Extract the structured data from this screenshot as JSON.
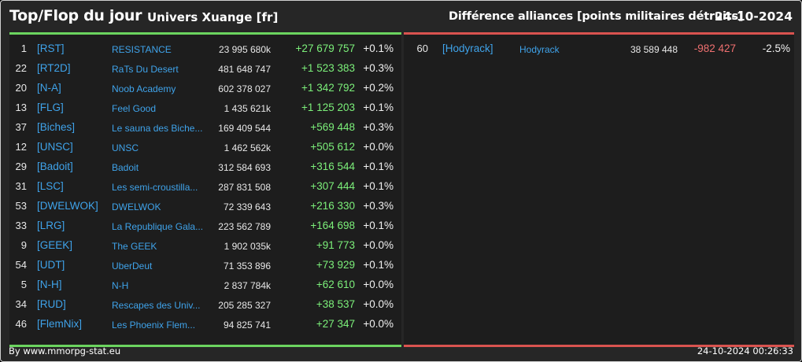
{
  "header": {
    "title": "Top/Flop du jour",
    "universe": "Univers Xuange [fr]",
    "subtitle": "Différence alliances [points militaires détruits]",
    "date": "24-10-2024"
  },
  "top": [
    {
      "rank": "1",
      "tag": "[RST]",
      "name": "RESISTANCE",
      "points": "23 995 680k",
      "diff": "+27 679 757",
      "pct": "+0.1%"
    },
    {
      "rank": "22",
      "tag": "[RT2D]",
      "name": "RaTs Du Desert",
      "points": "481 648 747",
      "diff": "+1 523 383",
      "pct": "+0.3%"
    },
    {
      "rank": "20",
      "tag": "[N-A]",
      "name": "Noob Academy",
      "points": "602 378 027",
      "diff": "+1 342 792",
      "pct": "+0.2%"
    },
    {
      "rank": "13",
      "tag": "[FLG]",
      "name": "Feel Good",
      "points": "1 435 621k",
      "diff": "+1 125 203",
      "pct": "+0.1%"
    },
    {
      "rank": "37",
      "tag": "[Biches]",
      "name": "Le sauna des Biche...",
      "points": "169 409 544",
      "diff": "+569 448",
      "pct": "+0.3%"
    },
    {
      "rank": "12",
      "tag": "[UNSC]",
      "name": "UNSC",
      "points": "1 462 562k",
      "diff": "+505 612",
      "pct": "+0.0%"
    },
    {
      "rank": "29",
      "tag": "[Badoit]",
      "name": "Badoit",
      "points": "312 584 693",
      "diff": "+316 544",
      "pct": "+0.1%"
    },
    {
      "rank": "31",
      "tag": "[LSC]",
      "name": "Les semi-croustilla...",
      "points": "287 831 508",
      "diff": "+307 444",
      "pct": "+0.1%"
    },
    {
      "rank": "53",
      "tag": "[DWELWOK]",
      "name": "DWELWOK",
      "points": "72 339 643",
      "diff": "+216 330",
      "pct": "+0.3%"
    },
    {
      "rank": "33",
      "tag": "[LRG]",
      "name": "La Republique Gala...",
      "points": "223 562 789",
      "diff": "+164 698",
      "pct": "+0.1%"
    },
    {
      "rank": "9",
      "tag": "[GEEK]",
      "name": "The GEEK",
      "points": "1 902 035k",
      "diff": "+91 773",
      "pct": "+0.0%"
    },
    {
      "rank": "54",
      "tag": "[UDT]",
      "name": "UberDeut",
      "points": "71 353 896",
      "diff": "+73 929",
      "pct": "+0.1%"
    },
    {
      "rank": "5",
      "tag": "[N-H]",
      "name": "N-H",
      "points": "2 837 784k",
      "diff": "+62 610",
      "pct": "+0.0%"
    },
    {
      "rank": "34",
      "tag": "[RUD]",
      "name": "Rescapes des Univ...",
      "points": "205 285 327",
      "diff": "+38 537",
      "pct": "+0.0%"
    },
    {
      "rank": "46",
      "tag": "[FlemNix]",
      "name": "Les Phoenix Flem...",
      "points": "94 825 741",
      "diff": "+27 347",
      "pct": "+0.0%"
    }
  ],
  "flop": [
    {
      "rank": "60",
      "tag": "[Hodyrack]",
      "name": "Hodyrack",
      "points": "38 589 448",
      "diff": "-982 427",
      "pct": "-2.5%"
    }
  ],
  "footer": {
    "site": "By www.mmorpg-stat.eu",
    "timestamp": "24-10-2024 00:26:33"
  },
  "colors": {
    "top_accent": "#6bd45f",
    "flop_accent": "#d9534f",
    "link": "#3fa3ea",
    "positive": "#7cf07a",
    "negative": "#f07070"
  }
}
